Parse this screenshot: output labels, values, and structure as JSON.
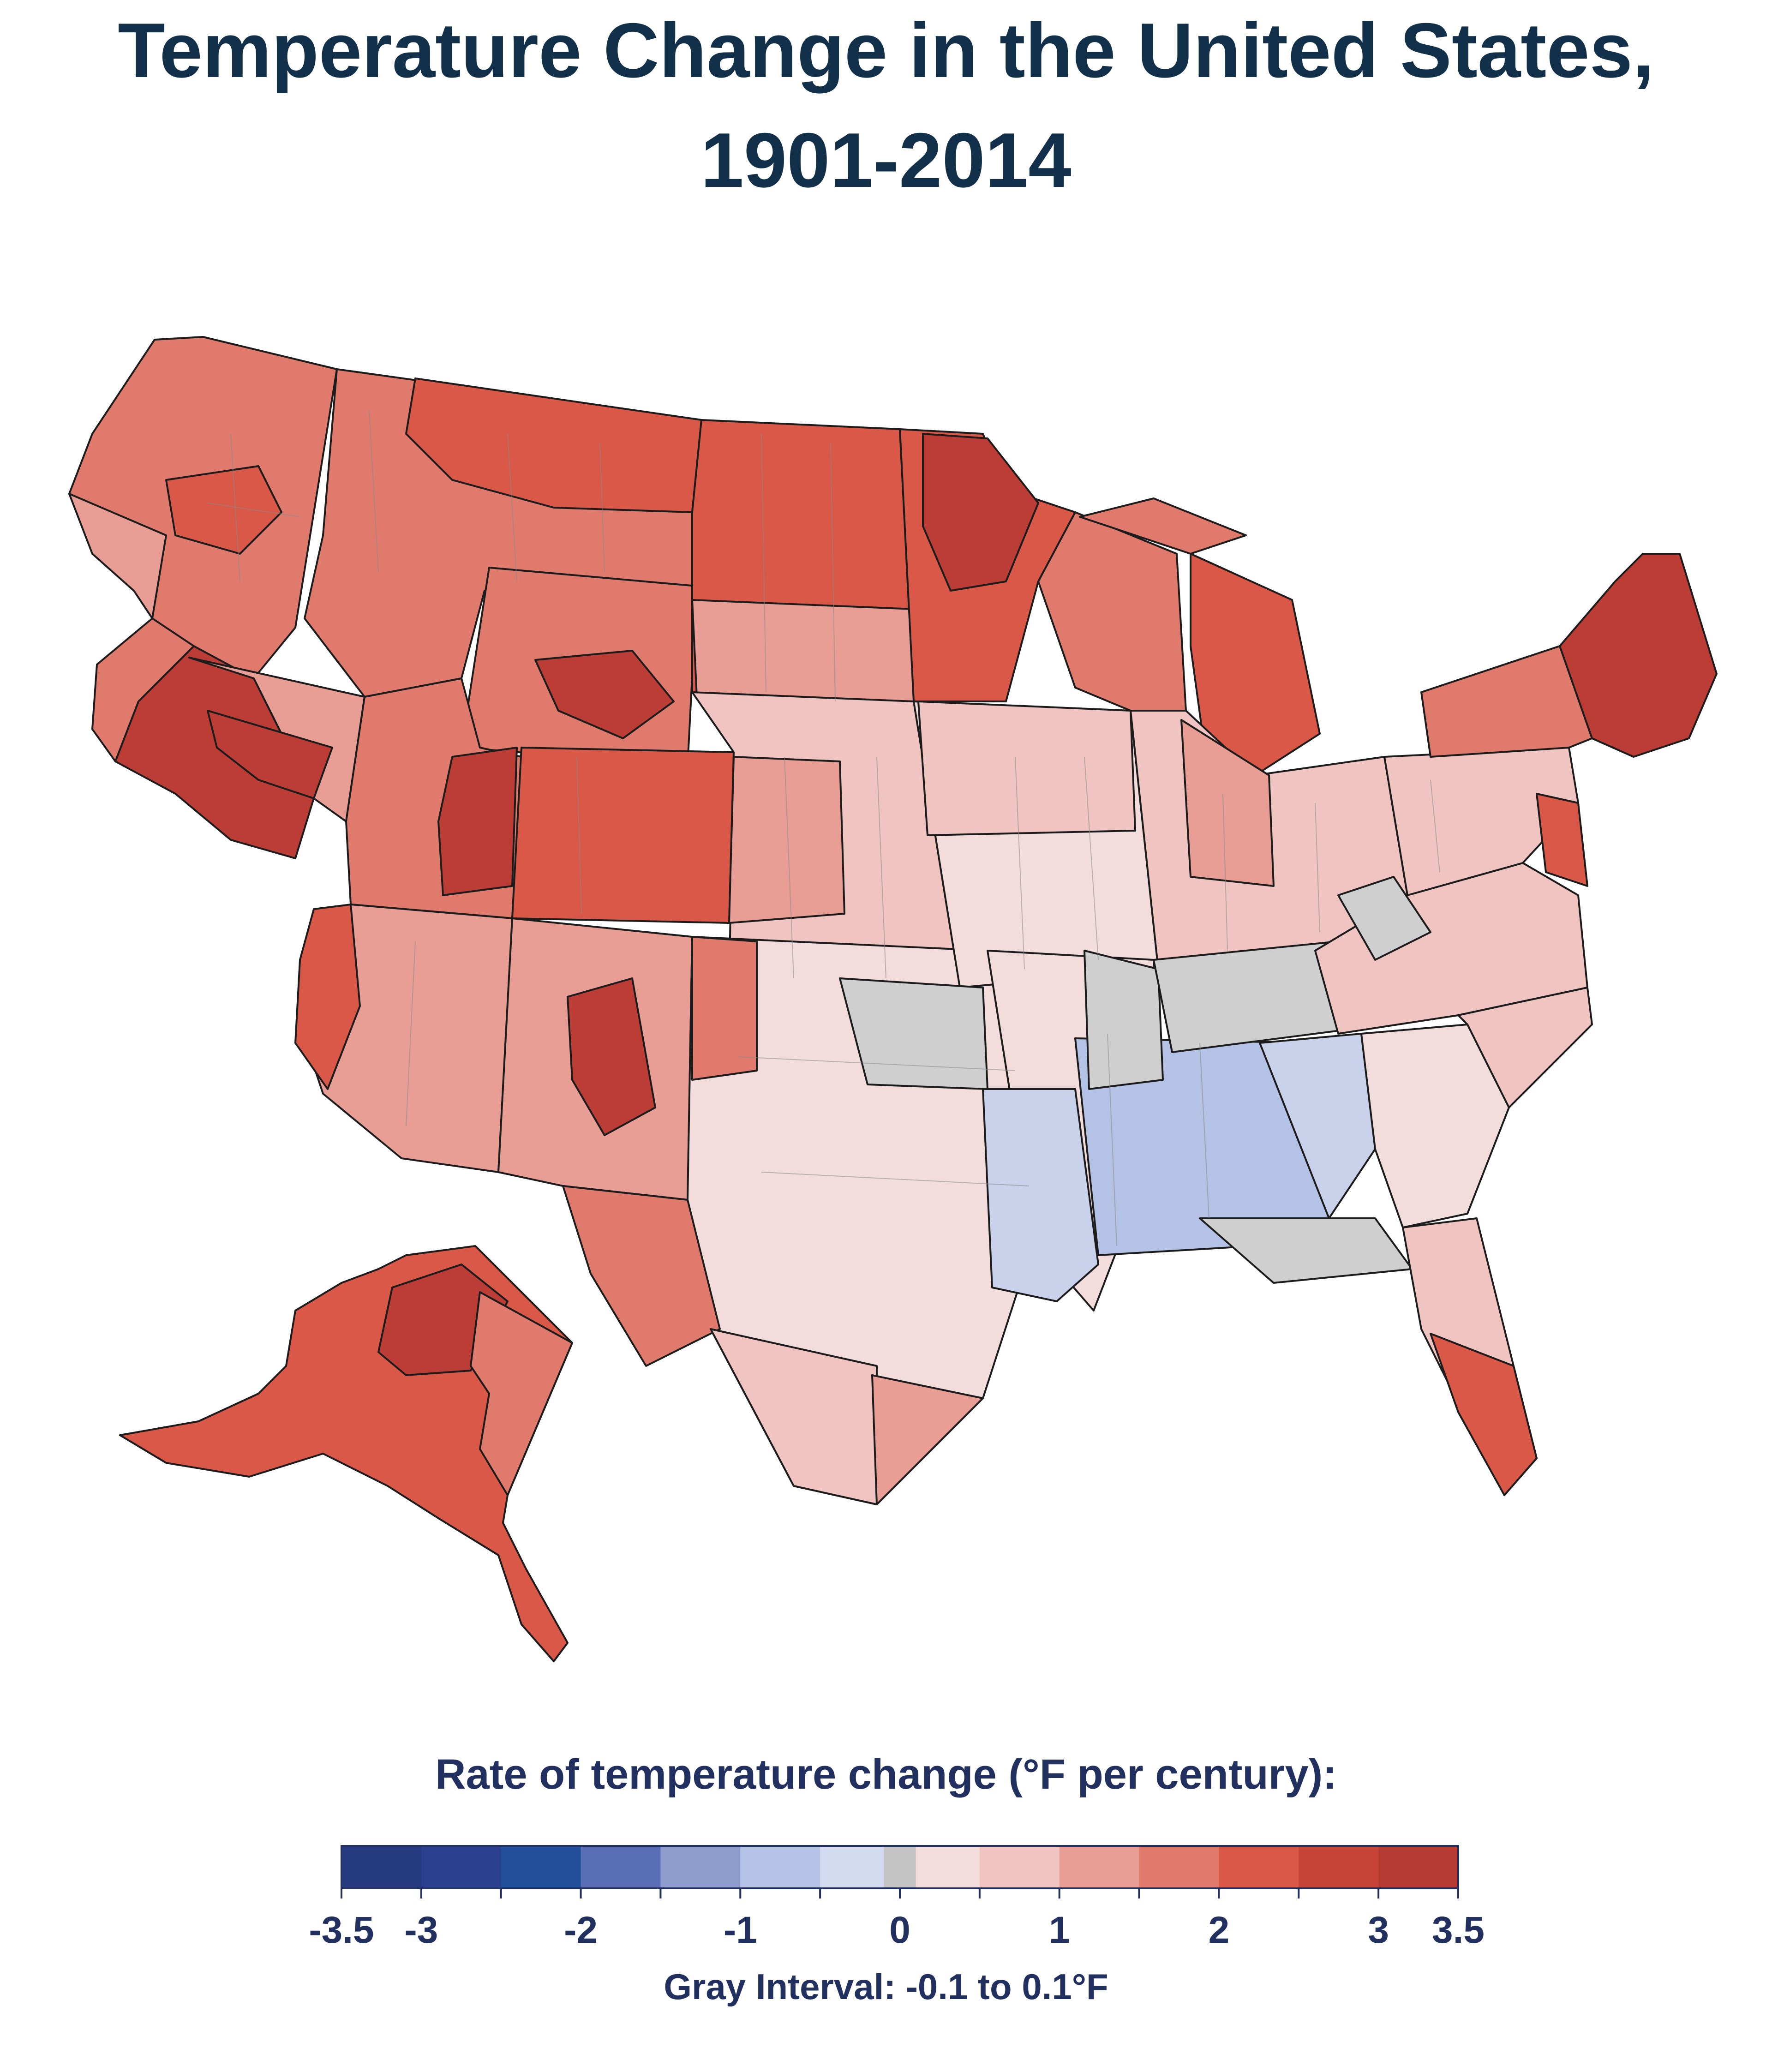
{
  "title": {
    "line1": "Temperature Change in the United States,",
    "line2": "1901-2014"
  },
  "map": {
    "region": "United States",
    "fill_colors": {
      "dark_red": "#bb3d35",
      "red": "#d95848",
      "salmon": "#e07a6d",
      "light_salmon": "#e89d95",
      "pale_pink": "#f0c4c0",
      "very_pale": "#f2dcdc",
      "gray": "#cfcfcf",
      "pale_blue": "#c9d1eb",
      "light_blue": "#b4c2e5"
    },
    "border_color": "#1c1c1c"
  },
  "legend": {
    "title": "Rate of temperature change (°F per century):",
    "tick_labels": [
      "-3.5",
      "-3",
      "-2",
      "-1",
      "0",
      "1",
      "2",
      "3",
      "3.5"
    ],
    "tick_values": [
      -3.5,
      -3,
      -2,
      -1,
      0,
      1,
      2,
      3,
      3.5
    ],
    "range": [
      -3.5,
      3.5
    ],
    "bins": [
      {
        "from": -3.5,
        "to": -3.0,
        "color": "#263a7f"
      },
      {
        "from": -3.0,
        "to": -2.5,
        "color": "#2b3f8f"
      },
      {
        "from": -2.5,
        "to": -2.0,
        "color": "#224f99"
      },
      {
        "from": -2.0,
        "to": -1.5,
        "color": "#5b6fb6"
      },
      {
        "from": -1.5,
        "to": -1.0,
        "color": "#8e9dcd"
      },
      {
        "from": -1.0,
        "to": -0.5,
        "color": "#b4c2e5"
      },
      {
        "from": -0.5,
        "to": -0.1,
        "color": "#d3d9ee"
      },
      {
        "from": -0.1,
        "to": 0.1,
        "color": "#c4c4c4"
      },
      {
        "from": 0.1,
        "to": 0.5,
        "color": "#f2dcdc"
      },
      {
        "from": 0.5,
        "to": 1.0,
        "color": "#f0c4c0"
      },
      {
        "from": 1.0,
        "to": 1.5,
        "color": "#e89d95"
      },
      {
        "from": 1.5,
        "to": 2.0,
        "color": "#e07a6d"
      },
      {
        "from": 2.0,
        "to": 2.5,
        "color": "#d95848"
      },
      {
        "from": 2.5,
        "to": 3.0,
        "color": "#c64438"
      },
      {
        "from": 3.0,
        "to": 3.5,
        "color": "#b53b32"
      }
    ],
    "label_color": "#21305e",
    "gray_interval_note": "Gray Interval: -0.1 to 0.1°F"
  }
}
